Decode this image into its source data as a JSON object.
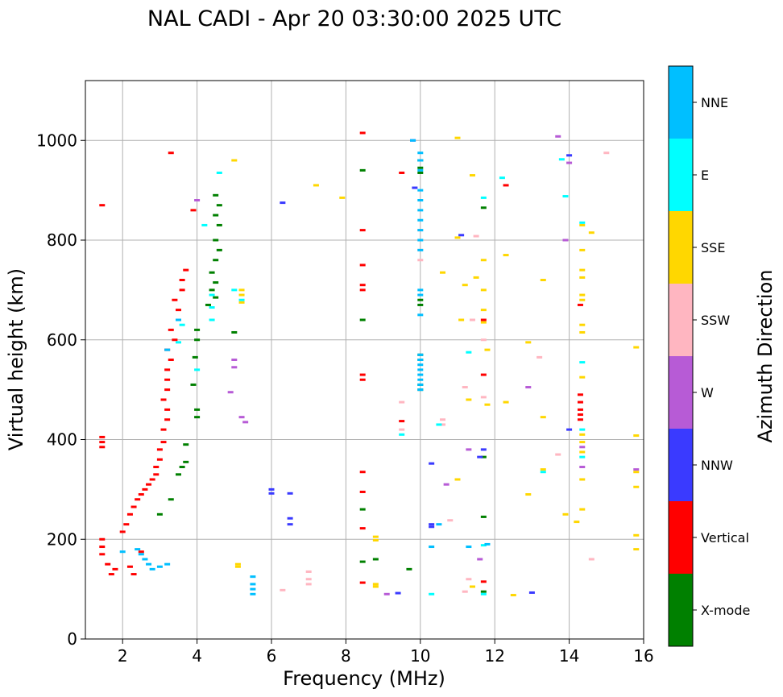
{
  "chart_data": {
    "type": "scatter",
    "title": "NAL CADI - Apr 20 03:30:00 2025 UTC",
    "xlabel": "Frequency (MHz)",
    "ylabel": "Virtual height (km)",
    "xlim": [
      1,
      16
    ],
    "ylim": [
      0,
      1120
    ],
    "xticks": [
      2,
      4,
      6,
      8,
      10,
      12,
      14,
      16
    ],
    "xtick_labels": [
      "2",
      "4",
      "6",
      "8",
      "10",
      "12",
      "14",
      "16"
    ],
    "yticks": [
      0,
      200,
      400,
      600,
      800,
      1000
    ],
    "ytick_labels": [
      "0",
      "200",
      "400",
      "600",
      "800",
      "1000"
    ],
    "grid": true,
    "colorbar": {
      "label": "Azimuth Direction",
      "categories": [
        {
          "name": "X-mode",
          "color": "#008000"
        },
        {
          "name": "Vertical",
          "color": "#ff0000"
        },
        {
          "name": "NNW",
          "color": "#3a3aff"
        },
        {
          "name": "W",
          "color": "#b75bd6"
        },
        {
          "name": "SSW",
          "color": "#ffb6c1"
        },
        {
          "name": "SSE",
          "color": "#ffd700"
        },
        {
          "name": "E",
          "color": "#00ffff"
        },
        {
          "name": "NNE",
          "color": "#00bfff"
        }
      ]
    },
    "series": [
      {
        "name": "Vertical",
        "points": [
          [
            1.45,
            385
          ],
          [
            1.45,
            395
          ],
          [
            1.45,
            405
          ],
          [
            1.45,
            870
          ],
          [
            1.45,
            200
          ],
          [
            1.45,
            185
          ],
          [
            1.45,
            170
          ],
          [
            1.6,
            150
          ],
          [
            1.7,
            130
          ],
          [
            1.8,
            140
          ],
          [
            2.0,
            215
          ],
          [
            2.1,
            230
          ],
          [
            2.2,
            250
          ],
          [
            2.3,
            265
          ],
          [
            2.4,
            280
          ],
          [
            2.5,
            290
          ],
          [
            2.6,
            300
          ],
          [
            2.7,
            310
          ],
          [
            2.8,
            320
          ],
          [
            2.9,
            330
          ],
          [
            2.9,
            345
          ],
          [
            3.0,
            360
          ],
          [
            3.0,
            380
          ],
          [
            3.1,
            395
          ],
          [
            3.1,
            420
          ],
          [
            3.2,
            440
          ],
          [
            3.2,
            460
          ],
          [
            3.1,
            480
          ],
          [
            3.2,
            500
          ],
          [
            3.2,
            520
          ],
          [
            3.2,
            540
          ],
          [
            3.3,
            560
          ],
          [
            3.2,
            580
          ],
          [
            3.4,
            600
          ],
          [
            3.3,
            620
          ],
          [
            3.5,
            640
          ],
          [
            3.5,
            660
          ],
          [
            3.4,
            680
          ],
          [
            3.6,
            700
          ],
          [
            3.6,
            720
          ],
          [
            3.7,
            740
          ],
          [
            3.9,
            860
          ],
          [
            3.3,
            975
          ],
          [
            2.2,
            145
          ],
          [
            2.5,
            175
          ],
          [
            2.3,
            130
          ],
          [
            8.45,
            1015
          ],
          [
            8.45,
            820
          ],
          [
            8.45,
            750
          ],
          [
            8.45,
            710
          ],
          [
            8.45,
            700
          ],
          [
            8.45,
            530
          ],
          [
            8.45,
            520
          ],
          [
            8.45,
            335
          ],
          [
            8.45,
            295
          ],
          [
            8.45,
            222
          ],
          [
            8.45,
            113
          ],
          [
            9.5,
            935
          ],
          [
            9.5,
            437
          ],
          [
            11.7,
            640
          ],
          [
            11.7,
            530
          ],
          [
            11.7,
            115
          ],
          [
            12.3,
            910
          ],
          [
            14.3,
            670
          ],
          [
            14.3,
            490
          ],
          [
            14.3,
            475
          ],
          [
            14.3,
            460
          ],
          [
            14.3,
            450
          ],
          [
            14.3,
            440
          ]
        ]
      },
      {
        "name": "X-mode",
        "points": [
          [
            4.5,
            890
          ],
          [
            4.6,
            870
          ],
          [
            4.5,
            850
          ],
          [
            4.6,
            830
          ],
          [
            4.5,
            800
          ],
          [
            4.6,
            780
          ],
          [
            4.5,
            760
          ],
          [
            4.4,
            735
          ],
          [
            4.5,
            715
          ],
          [
            4.4,
            700
          ],
          [
            4.5,
            685
          ],
          [
            4.3,
            670
          ],
          [
            4.0,
            620
          ],
          [
            4.0,
            600
          ],
          [
            3.95,
            565
          ],
          [
            3.9,
            510
          ],
          [
            4.0,
            460
          ],
          [
            4.0,
            445
          ],
          [
            3.7,
            390
          ],
          [
            3.7,
            355
          ],
          [
            3.6,
            345
          ],
          [
            3.5,
            330
          ],
          [
            3.3,
            280
          ],
          [
            3.0,
            250
          ],
          [
            8.45,
            940
          ],
          [
            8.45,
            640
          ],
          [
            8.45,
            260
          ],
          [
            8.45,
            155
          ],
          [
            8.8,
            160
          ],
          [
            9.7,
            140
          ],
          [
            10.0,
            960
          ],
          [
            10.0,
            945
          ],
          [
            10.0,
            935
          ],
          [
            10.0,
            680
          ],
          [
            10.0,
            670
          ],
          [
            10.0,
            570
          ],
          [
            10.0,
            560
          ],
          [
            10.0,
            510
          ],
          [
            10.0,
            500
          ],
          [
            11.7,
            865
          ],
          [
            11.7,
            365
          ],
          [
            11.7,
            245
          ],
          [
            11.7,
            95
          ],
          [
            5.0,
            615
          ]
        ]
      },
      {
        "name": "NNW",
        "points": [
          [
            6.0,
            300
          ],
          [
            6.0,
            292
          ],
          [
            6.5,
            292
          ],
          [
            6.5,
            242
          ],
          [
            6.5,
            230
          ],
          [
            6.3,
            875
          ],
          [
            9.8,
            1000
          ],
          [
            9.85,
            905
          ],
          [
            10.3,
            352
          ],
          [
            10.3,
            230
          ],
          [
            10.3,
            225
          ],
          [
            11.1,
            810
          ],
          [
            11.6,
            365
          ],
          [
            13.0,
            93
          ],
          [
            14.0,
            970
          ],
          [
            14.0,
            420
          ],
          [
            11.7,
            380
          ],
          [
            9.4,
            92
          ]
        ]
      },
      {
        "name": "W",
        "points": [
          [
            5.2,
            445
          ],
          [
            5.3,
            435
          ],
          [
            5.0,
            560
          ],
          [
            5.0,
            545
          ],
          [
            4.0,
            880
          ],
          [
            4.9,
            495
          ],
          [
            9.1,
            90
          ],
          [
            10.7,
            310
          ],
          [
            11.3,
            380
          ],
          [
            11.6,
            160
          ],
          [
            12.9,
            505
          ],
          [
            13.7,
            1008
          ],
          [
            13.9,
            800
          ],
          [
            14.0,
            955
          ],
          [
            14.35,
            385
          ],
          [
            14.35,
            345
          ],
          [
            15.8,
            340
          ]
        ]
      },
      {
        "name": "SSW",
        "points": [
          [
            6.3,
            98
          ],
          [
            7.0,
            135
          ],
          [
            7.0,
            120
          ],
          [
            7.0,
            110
          ],
          [
            9.5,
            475
          ],
          [
            9.5,
            420
          ],
          [
            10.0,
            820
          ],
          [
            10.0,
            800
          ],
          [
            10.0,
            780
          ],
          [
            10.0,
            760
          ],
          [
            10.6,
            440
          ],
          [
            10.6,
            430
          ],
          [
            10.8,
            238
          ],
          [
            11.2,
            505
          ],
          [
            11.4,
            640
          ],
          [
            11.5,
            808
          ],
          [
            11.7,
            600
          ],
          [
            11.7,
            485
          ],
          [
            13.2,
            565
          ],
          [
            13.7,
            370
          ],
          [
            14.6,
            160
          ],
          [
            15.0,
            975
          ],
          [
            11.3,
            120
          ],
          [
            11.2,
            95
          ]
        ]
      },
      {
        "name": "SSE",
        "points": [
          [
            5.0,
            960
          ],
          [
            5.2,
            700
          ],
          [
            5.2,
            690
          ],
          [
            5.2,
            675
          ],
          [
            7.2,
            910
          ],
          [
            7.9,
            885
          ],
          [
            8.8,
            205
          ],
          [
            8.8,
            198
          ],
          [
            8.8,
            110
          ],
          [
            8.8,
            105
          ],
          [
            10.6,
            735
          ],
          [
            11.0,
            1005
          ],
          [
            11.0,
            805
          ],
          [
            11.0,
            320
          ],
          [
            11.1,
            640
          ],
          [
            11.2,
            710
          ],
          [
            11.3,
            480
          ],
          [
            11.4,
            930
          ],
          [
            11.4,
            105
          ],
          [
            11.5,
            725
          ],
          [
            11.7,
            760
          ],
          [
            11.7,
            700
          ],
          [
            11.7,
            660
          ],
          [
            11.7,
            635
          ],
          [
            11.8,
            580
          ],
          [
            11.8,
            470
          ],
          [
            12.3,
            770
          ],
          [
            12.3,
            475
          ],
          [
            12.5,
            88
          ],
          [
            12.9,
            290
          ],
          [
            12.9,
            595
          ],
          [
            13.3,
            720
          ],
          [
            13.3,
            445
          ],
          [
            13.3,
            340
          ],
          [
            13.9,
            250
          ],
          [
            14.2,
            235
          ],
          [
            14.35,
            830
          ],
          [
            14.35,
            780
          ],
          [
            14.35,
            740
          ],
          [
            14.35,
            725
          ],
          [
            14.35,
            690
          ],
          [
            14.35,
            680
          ],
          [
            14.35,
            630
          ],
          [
            14.35,
            615
          ],
          [
            14.35,
            525
          ],
          [
            14.35,
            410
          ],
          [
            14.35,
            395
          ],
          [
            14.35,
            375
          ],
          [
            14.35,
            320
          ],
          [
            14.35,
            260
          ],
          [
            14.6,
            815
          ],
          [
            15.8,
            585
          ],
          [
            15.8,
            408
          ],
          [
            15.8,
            335
          ],
          [
            15.8,
            305
          ],
          [
            15.8,
            208
          ],
          [
            15.8,
            180
          ],
          [
            5.1,
            150
          ],
          [
            5.1,
            145
          ]
        ]
      },
      {
        "name": "E",
        "points": [
          [
            3.6,
            630
          ],
          [
            3.5,
            595
          ],
          [
            4.4,
            690
          ],
          [
            4.4,
            665
          ],
          [
            4.4,
            640
          ],
          [
            4.0,
            540
          ],
          [
            4.6,
            935
          ],
          [
            4.2,
            830
          ],
          [
            5.2,
            680
          ],
          [
            5.0,
            700
          ],
          [
            9.5,
            410
          ],
          [
            10.3,
            90
          ],
          [
            10.5,
            430
          ],
          [
            11.7,
            885
          ],
          [
            11.7,
            188
          ],
          [
            11.7,
            90
          ],
          [
            12.2,
            925
          ],
          [
            13.8,
            962
          ],
          [
            13.9,
            888
          ],
          [
            14.35,
            835
          ],
          [
            14.35,
            555
          ],
          [
            14.35,
            420
          ],
          [
            14.35,
            365
          ],
          [
            11.3,
            575
          ],
          [
            13.3,
            335
          ]
        ]
      },
      {
        "name": "NNE",
        "points": [
          [
            2.0,
            175
          ],
          [
            2.4,
            180
          ],
          [
            2.5,
            170
          ],
          [
            2.6,
            160
          ],
          [
            2.7,
            150
          ],
          [
            2.8,
            140
          ],
          [
            3.0,
            145
          ],
          [
            3.2,
            150
          ],
          [
            5.5,
            125
          ],
          [
            5.5,
            110
          ],
          [
            5.5,
            100
          ],
          [
            5.5,
            90
          ],
          [
            9.8,
            1000
          ],
          [
            10.0,
            975
          ],
          [
            10.0,
            960
          ],
          [
            10.0,
            940
          ],
          [
            10.0,
            900
          ],
          [
            10.0,
            880
          ],
          [
            10.0,
            860
          ],
          [
            10.0,
            840
          ],
          [
            10.0,
            820
          ],
          [
            10.0,
            800
          ],
          [
            10.0,
            780
          ],
          [
            10.0,
            700
          ],
          [
            10.0,
            690
          ],
          [
            10.0,
            650
          ],
          [
            10.0,
            570
          ],
          [
            10.0,
            560
          ],
          [
            10.0,
            550
          ],
          [
            10.0,
            540
          ],
          [
            10.0,
            530
          ],
          [
            10.0,
            520
          ],
          [
            10.0,
            510
          ],
          [
            10.0,
            500
          ],
          [
            10.3,
            185
          ],
          [
            10.5,
            230
          ],
          [
            11.3,
            185
          ],
          [
            11.8,
            190
          ],
          [
            3.2,
            580
          ],
          [
            3.5,
            640
          ]
        ]
      }
    ]
  }
}
